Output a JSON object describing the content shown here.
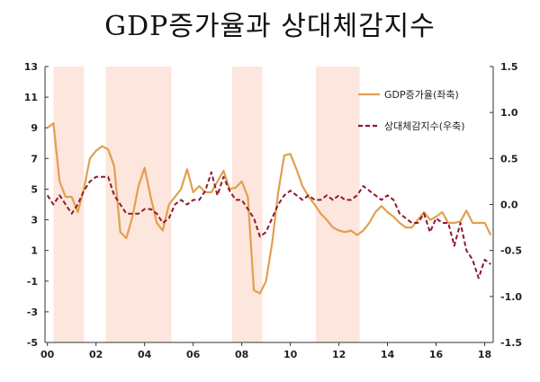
{
  "chart_data": {
    "type": "line",
    "title": "GDP증가율과 상대체감지수",
    "x_tick_labels": [
      "00",
      "02",
      "04",
      "06",
      "08",
      "10",
      "12",
      "14",
      "16",
      "18"
    ],
    "x_tick_positions": [
      2000,
      2002,
      2004,
      2006,
      2008,
      2010,
      2012,
      2014,
      2016,
      2018
    ],
    "xlim": [
      1999.9,
      2018.35
    ],
    "y_left": {
      "lim": [
        -5,
        13
      ],
      "ticks": [
        13,
        11,
        9,
        7,
        5,
        3,
        1,
        -1,
        -3,
        -5
      ]
    },
    "y_right": {
      "lim": [
        -1.5,
        1.5
      ],
      "ticks": [
        "1.5",
        "1.0",
        "0.5",
        "0.0",
        "-0.5",
        "-1.0",
        "-1.5"
      ]
    },
    "shaded_periods": [
      [
        2000.25,
        2001.5
      ],
      [
        2002.4,
        2005.1
      ],
      [
        2007.6,
        2008.85
      ],
      [
        2011.05,
        2012.85
      ]
    ],
    "shade_color": "#fde6dd",
    "legend_position": "top-right",
    "series": [
      {
        "name": "GDP증가율(좌축)",
        "axis": "left",
        "color": "#e29f4f",
        "style": "solid",
        "x": [
          2000.0,
          2000.25,
          2000.5,
          2000.75,
          2001.0,
          2001.25,
          2001.5,
          2001.75,
          2002.0,
          2002.25,
          2002.5,
          2002.75,
          2003.0,
          2003.25,
          2003.5,
          2003.75,
          2004.0,
          2004.25,
          2004.5,
          2004.75,
          2005.0,
          2005.25,
          2005.5,
          2005.75,
          2006.0,
          2006.25,
          2006.5,
          2006.75,
          2007.0,
          2007.25,
          2007.5,
          2007.75,
          2008.0,
          2008.25,
          2008.5,
          2008.75,
          2009.0,
          2009.25,
          2009.5,
          2009.75,
          2010.0,
          2010.25,
          2010.5,
          2010.75,
          2011.0,
          2011.25,
          2011.5,
          2011.75,
          2012.0,
          2012.25,
          2012.5,
          2012.75,
          2013.0,
          2013.25,
          2013.5,
          2013.75,
          2014.0,
          2014.25,
          2014.5,
          2014.75,
          2015.0,
          2015.25,
          2015.5,
          2015.75,
          2016.0,
          2016.25,
          2016.5,
          2016.75,
          2017.0,
          2017.25,
          2017.5,
          2017.75,
          2018.0,
          2018.25
        ],
        "values": [
          9.0,
          9.3,
          5.5,
          4.5,
          4.5,
          3.5,
          5.0,
          7.0,
          7.5,
          7.8,
          7.6,
          6.5,
          2.2,
          1.8,
          3.2,
          5.2,
          6.4,
          4.5,
          2.8,
          2.3,
          4.0,
          4.5,
          5.0,
          6.3,
          4.8,
          5.2,
          4.8,
          4.8,
          5.5,
          6.2,
          5.0,
          5.1,
          5.5,
          4.5,
          -1.6,
          -1.8,
          -1.0,
          1.5,
          4.8,
          7.2,
          7.3,
          6.3,
          5.2,
          4.5,
          4.0,
          3.4,
          3.0,
          2.5,
          2.3,
          2.2,
          2.3,
          2.0,
          2.3,
          2.8,
          3.5,
          3.9,
          3.5,
          3.2,
          2.8,
          2.5,
          2.5,
          3.0,
          3.5,
          3.0,
          3.2,
          3.5,
          2.8,
          2.8,
          2.9,
          3.6,
          2.8,
          2.8,
          2.8,
          2.0
        ]
      },
      {
        "name": "상대체감지수(우축)",
        "axis": "right",
        "color": "#8e1a2b",
        "style": "dashed",
        "x": [
          2000.0,
          2000.25,
          2000.5,
          2000.75,
          2001.0,
          2001.25,
          2001.5,
          2001.75,
          2002.0,
          2002.25,
          2002.5,
          2002.75,
          2003.0,
          2003.25,
          2003.5,
          2003.75,
          2004.0,
          2004.25,
          2004.5,
          2004.75,
          2005.0,
          2005.25,
          2005.5,
          2005.75,
          2006.0,
          2006.25,
          2006.5,
          2006.75,
          2007.0,
          2007.25,
          2007.5,
          2007.75,
          2008.0,
          2008.25,
          2008.5,
          2008.75,
          2009.0,
          2009.25,
          2009.5,
          2009.75,
          2010.0,
          2010.25,
          2010.5,
          2010.75,
          2011.0,
          2011.25,
          2011.5,
          2011.75,
          2012.0,
          2012.25,
          2012.5,
          2012.75,
          2013.0,
          2013.25,
          2013.5,
          2013.75,
          2014.0,
          2014.25,
          2014.5,
          2014.75,
          2015.0,
          2015.25,
          2015.5,
          2015.75,
          2016.0,
          2016.25,
          2016.5,
          2016.75,
          2017.0,
          2017.25,
          2017.5,
          2017.75,
          2018.0,
          2018.25
        ],
        "values": [
          0.1,
          0.0,
          0.1,
          0.0,
          -0.1,
          0.0,
          0.15,
          0.25,
          0.3,
          0.3,
          0.3,
          0.1,
          0.0,
          -0.1,
          -0.1,
          -0.1,
          -0.05,
          -0.05,
          -0.1,
          -0.2,
          -0.15,
          0.0,
          0.05,
          0.0,
          0.05,
          0.05,
          0.15,
          0.35,
          0.1,
          0.3,
          0.15,
          0.05,
          0.05,
          -0.05,
          -0.15,
          -0.35,
          -0.3,
          -0.15,
          0.0,
          0.1,
          0.15,
          0.1,
          0.05,
          0.1,
          0.05,
          0.05,
          0.1,
          0.05,
          0.1,
          0.05,
          0.05,
          0.1,
          0.2,
          0.15,
          0.1,
          0.05,
          0.1,
          0.05,
          -0.1,
          -0.15,
          -0.2,
          -0.2,
          -0.1,
          -0.3,
          -0.15,
          -0.2,
          -0.2,
          -0.45,
          -0.2,
          -0.5,
          -0.6,
          -0.8,
          -0.6,
          -0.65
        ]
      }
    ]
  }
}
